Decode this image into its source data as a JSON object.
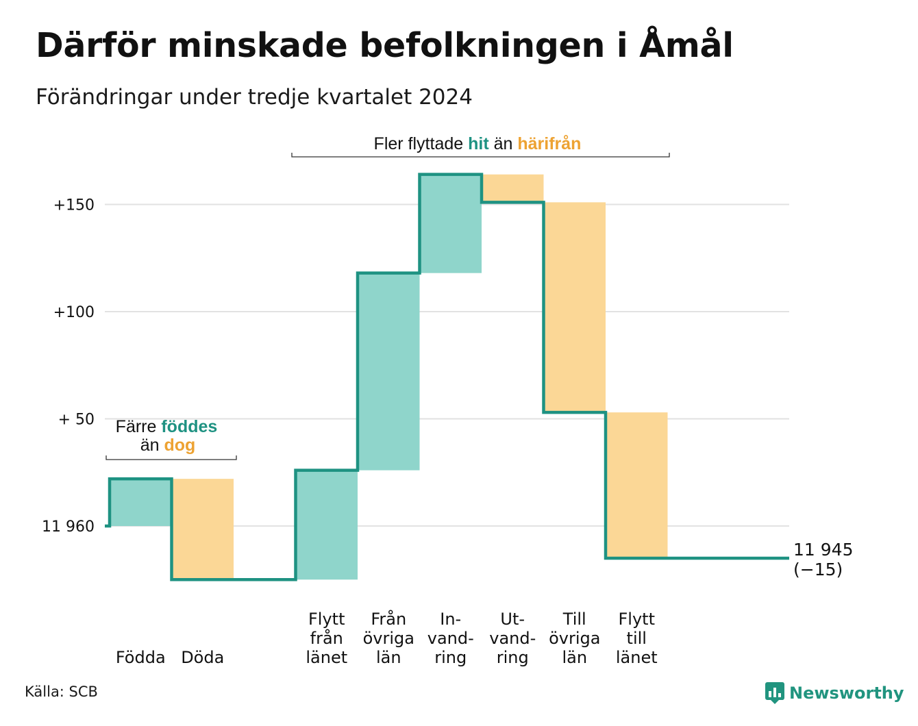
{
  "title": "Därför minskade befolkningen i Åmål",
  "subtitle": "Förändringar under tredje kvartalet 2024",
  "source": "Källa: SCB",
  "brand": "Newsworthy",
  "colors": {
    "increase": "#8fd5cb",
    "decrease": "#fbd796",
    "line": "#1e9282",
    "grid": "#e2e2e2",
    "accent_teal": "#1e9282",
    "accent_orange": "#eda232"
  },
  "annotations": {
    "births": {
      "line1_pre": "Färre ",
      "line1_hl": "föddes",
      "line2_pre": "än ",
      "line2_hl": "dog"
    },
    "migration": {
      "pre": "Fler flyttade ",
      "hl1": "hit",
      "mid": " än ",
      "hl2": "härifrån"
    }
  },
  "chart_data": {
    "type": "waterfall",
    "title": "Därför minskade befolkningen i Åmål",
    "subtitle": "Förändringar under tredje kvartalet 2024",
    "baseline": 11960,
    "yticks": [
      {
        "value": 0,
        "label": "11 960"
      },
      {
        "value": 50,
        "label": "+ 50"
      },
      {
        "value": 100,
        "label": "+100"
      },
      {
        "value": 150,
        "label": "+150"
      }
    ],
    "ylim": [
      -30,
      165
    ],
    "grid": true,
    "steps": [
      {
        "category": [
          "Födda"
        ],
        "change": 22
      },
      {
        "category": [
          "Döda"
        ],
        "change": -47
      },
      {
        "category": [
          ""
        ],
        "change": 0
      },
      {
        "category": [
          "Flytt",
          "från",
          "länet"
        ],
        "change": 51
      },
      {
        "category": [
          "Från",
          "övriga",
          "län"
        ],
        "change": 92
      },
      {
        "category": [
          "In-",
          "vand-",
          "ring"
        ],
        "change": 46
      },
      {
        "category": [
          "Ut-",
          "vand-",
          "ring"
        ],
        "change": -13
      },
      {
        "category": [
          "Till",
          "övriga",
          "län"
        ],
        "change": -98
      },
      {
        "category": [
          "Flytt",
          "till",
          "länet"
        ],
        "change": -68
      }
    ],
    "end_label": {
      "value": "11 945",
      "change": "(−15)"
    }
  }
}
